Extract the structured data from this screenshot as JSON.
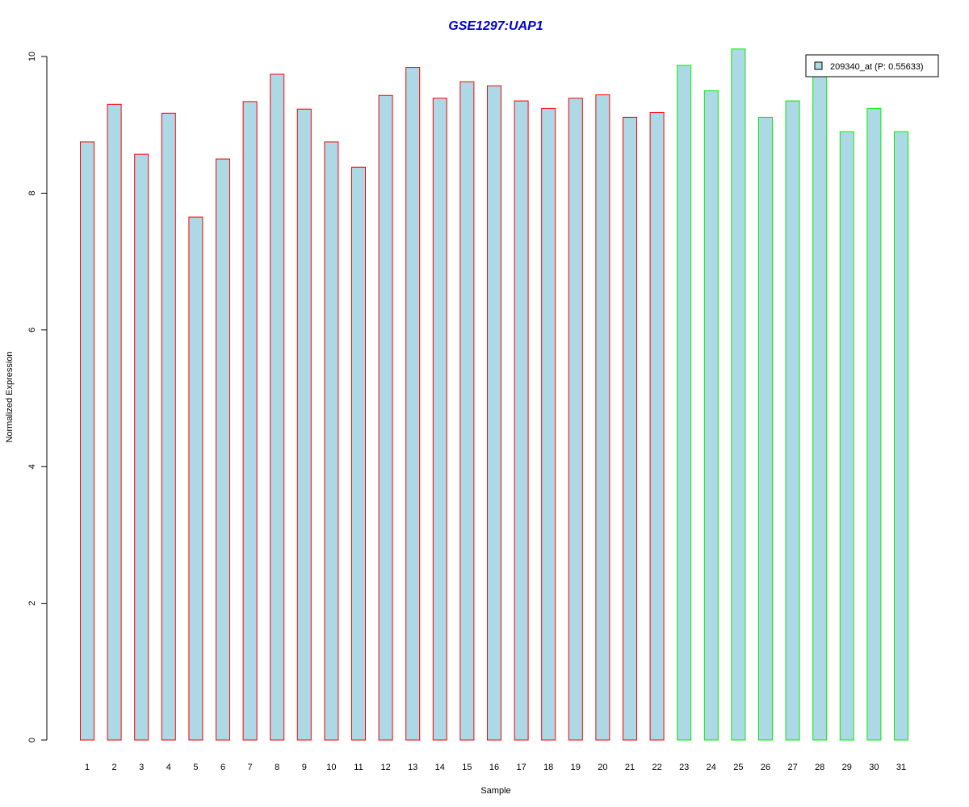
{
  "chart_data": {
    "type": "bar",
    "title": "GSE1297:UAP1",
    "xlabel": "Sample",
    "ylabel": "Normalized Expression",
    "categories": [
      "1",
      "2",
      "3",
      "4",
      "5",
      "6",
      "7",
      "8",
      "9",
      "10",
      "11",
      "12",
      "13",
      "14",
      "15",
      "16",
      "17",
      "18",
      "19",
      "20",
      "21",
      "22",
      "23",
      "24",
      "25",
      "26",
      "27",
      "28",
      "29",
      "30",
      "31"
    ],
    "series": [
      {
        "name": "209340_at (P: 0.55633)",
        "values": [
          8.75,
          9.3,
          8.57,
          9.17,
          7.65,
          8.5,
          9.34,
          9.74,
          9.23,
          8.75,
          8.38,
          9.43,
          9.84,
          9.39,
          9.63,
          9.57,
          9.35,
          9.24,
          9.39,
          9.44,
          9.11,
          9.18,
          9.87,
          9.5,
          10.11,
          9.11,
          9.35,
          9.76,
          8.9,
          9.24,
          8.9
        ]
      }
    ],
    "groups": [
      {
        "samples": "1-22",
        "border_color": "#ff0000"
      },
      {
        "samples": "23-31",
        "border_color": "#00ee00"
      }
    ],
    "bar_fill": "#add8e6",
    "title_color": "#0000cd",
    "ylim": [
      0,
      10
    ],
    "yticks": [
      "0",
      "2",
      "4",
      "6",
      "8",
      "10"
    ],
    "grid": false,
    "legend_position": "top-right"
  }
}
